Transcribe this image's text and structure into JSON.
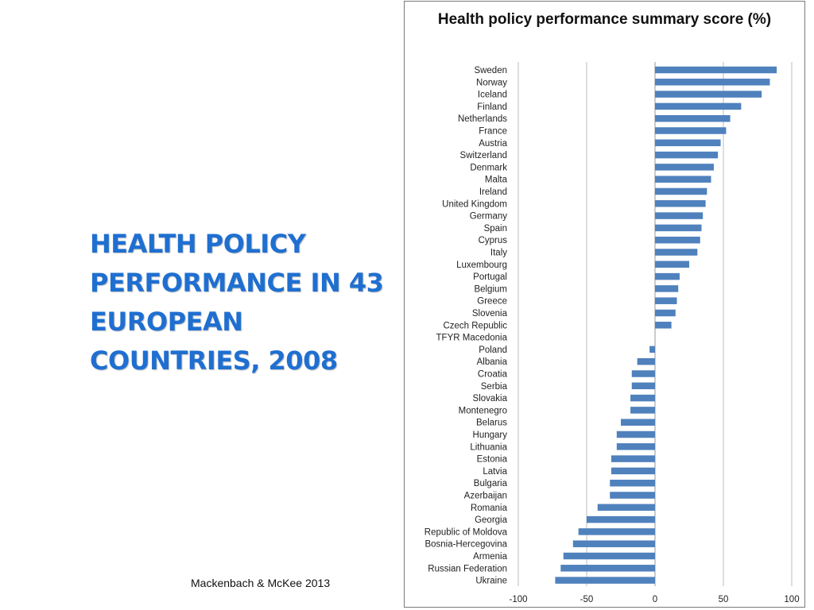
{
  "slide": {
    "title": "HEALTH POLICY PERFORMANCE IN 43 EUROPEAN COUNTRIES, 2008",
    "citation": "Mackenbach & McKee 2013"
  },
  "chart_data": {
    "type": "bar",
    "orientation": "horizontal",
    "title": "Health policy performance summary score (%)",
    "xlabel": "",
    "ylabel": "",
    "xlim": [
      -100,
      100
    ],
    "x_ticks": [
      -100,
      -50,
      0,
      50,
      100
    ],
    "grid": "vertical",
    "legend": "none",
    "bar_color": "#4f81bd",
    "categories": [
      "Sweden",
      "Norway",
      "Iceland",
      "Finland",
      "Netherlands",
      "France",
      "Austria",
      "Switzerland",
      "Denmark",
      "Malta",
      "Ireland",
      "United Kingdom",
      "Germany",
      "Spain",
      "Cyprus",
      "Italy",
      "Luxembourg",
      "Portugal",
      "Belgium",
      "Greece",
      "Slovenia",
      "Czech Republic",
      "TFYR Macedonia",
      "Poland",
      "Albania",
      "Croatia",
      "Serbia",
      "Slovakia",
      "Montenegro",
      "Belarus",
      "Hungary",
      "Lithuania",
      "Estonia",
      "Latvia",
      "Bulgaria",
      "Azerbaijan",
      "Romania",
      "Georgia",
      "Republic of Moldova",
      "Bosnia-Hercegovina",
      "Armenia",
      "Russian Federation",
      "Ukraine"
    ],
    "values": [
      89,
      84,
      78,
      63,
      55,
      52,
      48,
      46,
      43,
      41,
      38,
      37,
      35,
      34,
      33,
      31,
      25,
      18,
      17,
      16,
      15,
      12,
      0,
      -4,
      -13,
      -17,
      -17,
      -18,
      -18,
      -25,
      -28,
      -28,
      -32,
      -32,
      -33,
      -33,
      -42,
      -50,
      -56,
      -60,
      -67,
      -69,
      -73
    ]
  }
}
